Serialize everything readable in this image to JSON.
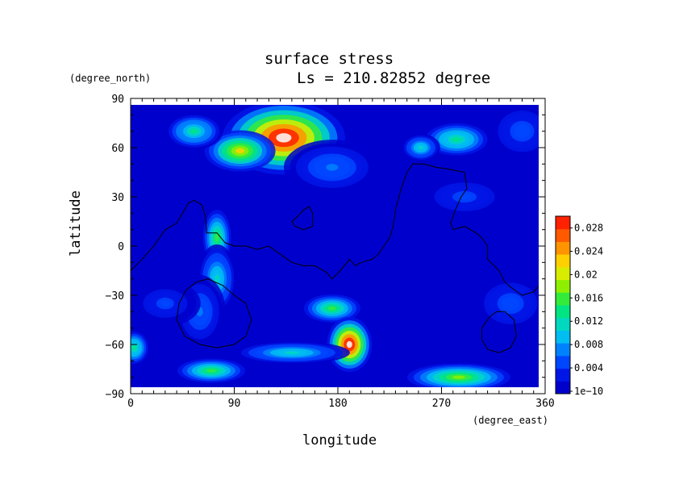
{
  "chart_data": {
    "type": "heatmap",
    "title": "surface stress",
    "subtitle": "Ls = 210.82852 degree",
    "xlabel": "longitude",
    "ylabel": "latitude",
    "x_units": "(degree_east)",
    "y_units": "(degree_north)",
    "xlim": [
      0,
      360
    ],
    "ylim": [
      -90,
      90
    ],
    "x_ticks": [
      "0",
      "90",
      "180",
      "270",
      "360"
    ],
    "y_ticks": [
      "90",
      "60",
      "30",
      "0",
      "−30",
      "−60",
      "−90"
    ],
    "colorbar": {
      "min": 1e-10,
      "max": 0.03,
      "tick_labels": [
        "1e−10",
        "0.004",
        "0.008",
        "0.012",
        "0.016",
        "0.02",
        "0.024",
        "0.028"
      ],
      "colors": [
        "#0000cd",
        "#0016e6",
        "#0046ff",
        "#0082ff",
        "#00bdf2",
        "#00d8c0",
        "#00e482",
        "#35eb3a",
        "#8ef000",
        "#d8ec00",
        "#ffd000",
        "#ff9400",
        "#ff5a00",
        "#ff2100",
        "#ffffff"
      ]
    },
    "hotspots": [
      {
        "lon": 133,
        "lat": 66,
        "rx": 38,
        "ry": 16,
        "peak": 0.032
      },
      {
        "lon": 95,
        "lat": 58,
        "rx": 22,
        "ry": 9,
        "peak": 0.022
      },
      {
        "lon": 55,
        "lat": 70,
        "rx": 18,
        "ry": 8,
        "peak": 0.013
      },
      {
        "lon": 283,
        "lat": 65,
        "rx": 22,
        "ry": 8,
        "peak": 0.014
      },
      {
        "lon": 252,
        "lat": 60,
        "rx": 12,
        "ry": 6,
        "peak": 0.012
      },
      {
        "lon": 175,
        "lat": 48,
        "rx": 30,
        "ry": 12,
        "peak": 0.007
      },
      {
        "lon": 75,
        "lat": 5,
        "rx": 10,
        "ry": 14,
        "peak": 0.016
      },
      {
        "lon": 75,
        "lat": -20,
        "rx": 12,
        "ry": 15,
        "peak": 0.012
      },
      {
        "lon": 60,
        "lat": -40,
        "rx": 16,
        "ry": 16,
        "peak": 0.007
      },
      {
        "lon": 175,
        "lat": -38,
        "rx": 20,
        "ry": 7,
        "peak": 0.016
      },
      {
        "lon": 190,
        "lat": -60,
        "rx": 14,
        "ry": 12,
        "peak": 0.032
      },
      {
        "lon": 140,
        "lat": -65,
        "rx": 36,
        "ry": 5,
        "peak": 0.012
      },
      {
        "lon": 70,
        "lat": -76,
        "rx": 24,
        "ry": 6,
        "peak": 0.016
      },
      {
        "lon": 3,
        "lat": -62,
        "rx": 10,
        "ry": 8,
        "peak": 0.014
      },
      {
        "lon": 285,
        "lat": -80,
        "rx": 32,
        "ry": 6,
        "peak": 0.018
      },
      {
        "lon": 330,
        "lat": -35,
        "rx": 22,
        "ry": 12,
        "peak": 0.006
      },
      {
        "lon": 30,
        "lat": -35,
        "rx": 22,
        "ry": 10,
        "peak": 0.005
      },
      {
        "lon": 290,
        "lat": 30,
        "rx": 30,
        "ry": 10,
        "peak": 0.005
      },
      {
        "lon": 340,
        "lat": 70,
        "rx": 20,
        "ry": 12,
        "peak": 0.006
      }
    ],
    "contours": [
      [
        [
          0,
          -15
        ],
        [
          10,
          -8
        ],
        [
          20,
          0
        ],
        [
          30,
          10
        ],
        [
          40,
          14
        ],
        [
          45,
          20
        ],
        [
          50,
          26
        ],
        [
          55,
          28
        ],
        [
          62,
          25
        ],
        [
          65,
          18
        ],
        [
          66,
          8
        ],
        [
          75,
          8
        ],
        [
          82,
          2
        ],
        [
          90,
          0
        ],
        [
          100,
          0
        ],
        [
          110,
          -2
        ],
        [
          120,
          0
        ],
        [
          130,
          -5
        ],
        [
          140,
          -10
        ],
        [
          150,
          -12
        ],
        [
          160,
          -12
        ],
        [
          170,
          -16
        ],
        [
          175,
          -20
        ],
        [
          182,
          -15
        ],
        [
          188,
          -10
        ],
        [
          190,
          -8
        ],
        [
          195,
          -12
        ],
        [
          200,
          -10
        ],
        [
          210,
          -8
        ],
        [
          215,
          -5
        ],
        [
          220,
          0
        ],
        [
          225,
          5
        ],
        [
          228,
          12
        ],
        [
          230,
          22
        ],
        [
          235,
          35
        ],
        [
          240,
          45
        ],
        [
          245,
          50
        ],
        [
          255,
          50
        ],
        [
          265,
          48
        ],
        [
          275,
          47
        ],
        [
          290,
          45
        ],
        [
          292,
          35
        ],
        [
          287,
          30
        ],
        [
          282,
          22
        ],
        [
          278,
          14
        ],
        [
          280,
          10
        ],
        [
          290,
          12
        ],
        [
          300,
          8
        ],
        [
          305,
          5
        ],
        [
          310,
          0
        ],
        [
          310,
          -8
        ],
        [
          320,
          -15
        ],
        [
          325,
          -22
        ],
        [
          330,
          -25
        ],
        [
          340,
          -30
        ],
        [
          350,
          -28
        ],
        [
          360,
          -20
        ]
      ],
      [
        [
          140,
          15
        ],
        [
          145,
          18
        ],
        [
          150,
          22
        ],
        [
          155,
          24
        ],
        [
          158,
          20
        ],
        [
          158,
          12
        ],
        [
          150,
          10
        ],
        [
          143,
          12
        ],
        [
          140,
          15
        ]
      ],
      [
        [
          40,
          -45
        ],
        [
          42,
          -35
        ],
        [
          48,
          -27
        ],
        [
          57,
          -22
        ],
        [
          67,
          -20
        ],
        [
          80,
          -24
        ],
        [
          90,
          -30
        ],
        [
          100,
          -35
        ],
        [
          105,
          -45
        ],
        [
          100,
          -55
        ],
        [
          90,
          -60
        ],
        [
          75,
          -62
        ],
        [
          60,
          -60
        ],
        [
          47,
          -55
        ],
        [
          40,
          -45
        ]
      ],
      [
        [
          305,
          -50
        ],
        [
          312,
          -43
        ],
        [
          318,
          -40
        ],
        [
          325,
          -40
        ],
        [
          333,
          -45
        ],
        [
          335,
          -55
        ],
        [
          330,
          -62
        ],
        [
          320,
          -65
        ],
        [
          310,
          -63
        ],
        [
          305,
          -57
        ],
        [
          305,
          -50
        ]
      ]
    ]
  }
}
